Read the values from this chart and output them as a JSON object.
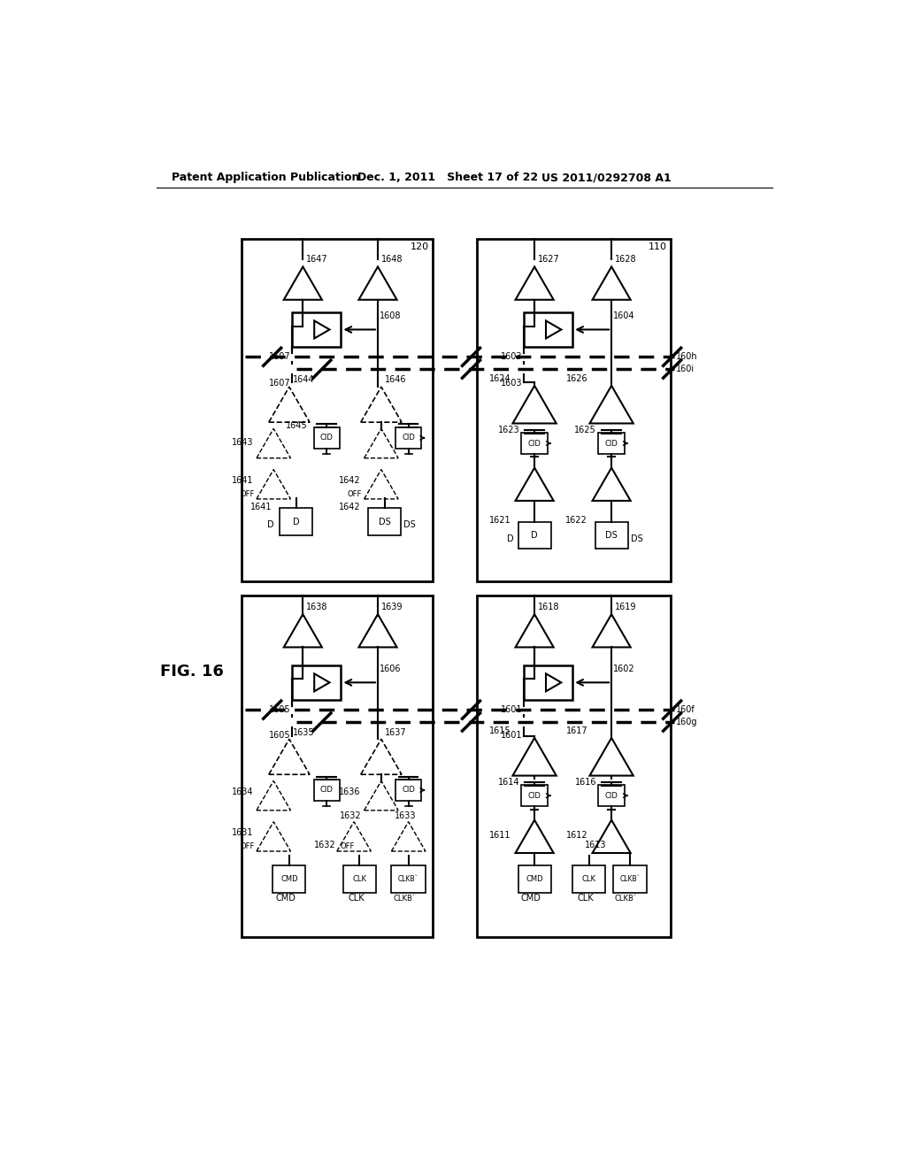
{
  "title_left": "Patent Application Publication",
  "title_mid": "Dec. 1, 2011   Sheet 17 of 22",
  "title_right": "US 2011/0292708 A1",
  "fig_label": "FIG. 16",
  "bg_color": "#ffffff"
}
